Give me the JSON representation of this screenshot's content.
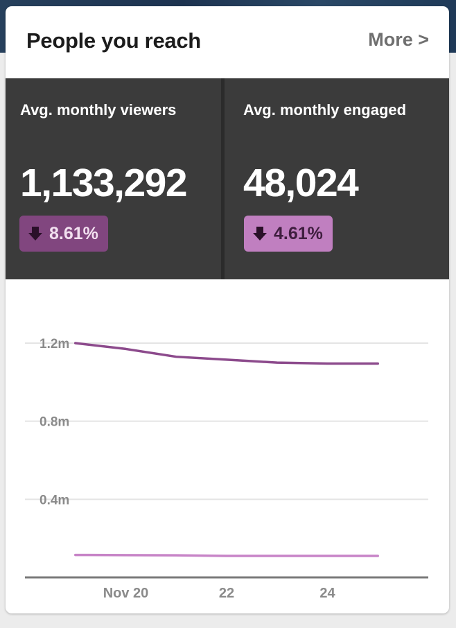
{
  "card": {
    "title": "People you reach",
    "more_label": "More >"
  },
  "stats": {
    "viewers": {
      "label": "Avg. monthly viewers",
      "value": "1,133,292",
      "change": "8.61%",
      "direction": "down",
      "icon": "arrow-down-icon",
      "badge_color": "#81467f"
    },
    "engaged": {
      "label": "Avg. monthly engaged",
      "value": "48,024",
      "change": "4.61%",
      "direction": "down",
      "icon": "arrow-down-icon",
      "badge_color": "#c07fc0"
    }
  },
  "chart_data": {
    "type": "line",
    "x": [
      19,
      20,
      21,
      22,
      23,
      24,
      25
    ],
    "x_tick_positions": [
      20,
      22,
      24
    ],
    "x_tick_labels": [
      "Nov 20",
      "22",
      "24"
    ],
    "y_ticks": [
      0.4,
      0.8,
      1.2
    ],
    "y_tick_labels": [
      "0.4m",
      "0.8m",
      "1.2m"
    ],
    "ylim": [
      0,
      1.42
    ],
    "xlim": [
      18,
      26
    ],
    "grid": true,
    "legend": "none",
    "series": [
      {
        "values": [
          1.2,
          1.17,
          1.13,
          1.115,
          1.1,
          1.095,
          1.095
        ],
        "color": "#8c4a8c"
      },
      {
        "values": [
          0.115,
          0.114,
          0.113,
          0.11,
          0.11,
          0.11,
          0.11
        ],
        "color": "#c784c7"
      }
    ]
  }
}
